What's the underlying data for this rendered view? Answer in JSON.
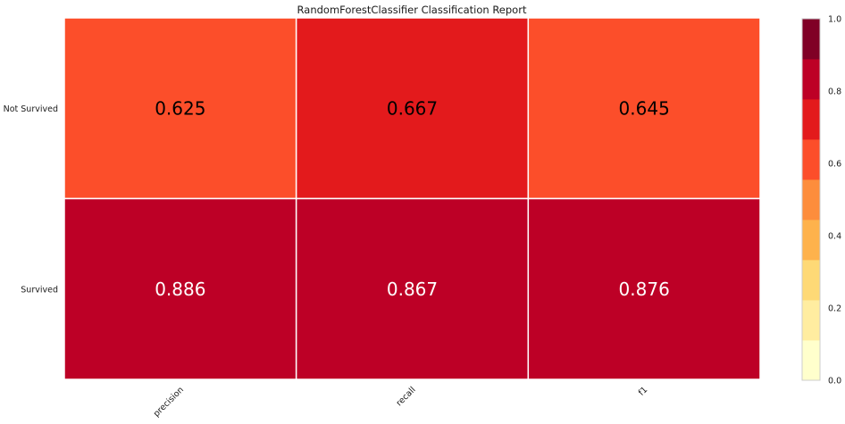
{
  "chart_data": {
    "type": "heatmap",
    "title": "RandomForestClassifier Classification Report",
    "rows": [
      "Not Survived",
      "Survived"
    ],
    "columns": [
      "precision",
      "recall",
      "f1"
    ],
    "values": [
      [
        0.625,
        0.667,
        0.645
      ],
      [
        0.886,
        0.867,
        0.876
      ]
    ],
    "value_labels": [
      [
        "0.625",
        "0.667",
        "0.645"
      ],
      [
        "0.886",
        "0.867",
        "0.876"
      ]
    ],
    "colorbar": {
      "range": [
        0,
        1
      ],
      "ticks": [
        "0.0",
        "0.2",
        "0.4",
        "0.6",
        "0.8",
        "1.0"
      ],
      "bins": [
        "#ffffcc",
        "#ffeda0",
        "#fed976",
        "#feb24c",
        "#fd8d3c",
        "#fc4e2a",
        "#e31a1c",
        "#bd0026",
        "#800026"
      ]
    },
    "text_colors": {
      "dark": "#000000",
      "light": "#ffffff"
    }
  }
}
